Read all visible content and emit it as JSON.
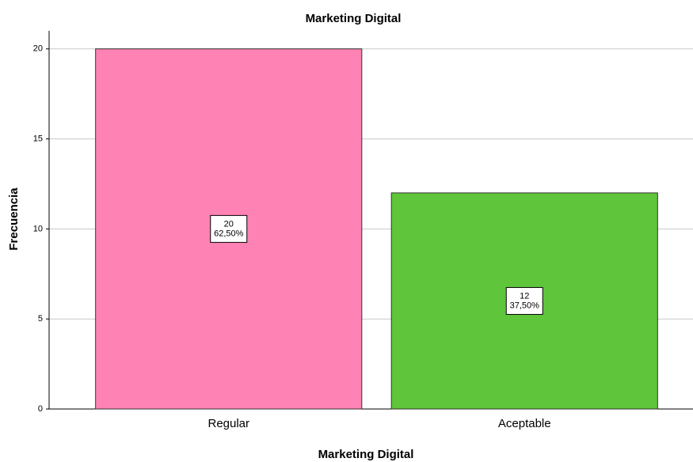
{
  "chart_data": {
    "type": "bar",
    "title": "Marketing Digital",
    "x_label": "Marketing Digital",
    "y_label": "Frecuencia",
    "categories": [
      "Regular",
      "Aceptable"
    ],
    "values": [
      20,
      12
    ],
    "percent_values": [
      62.5,
      37.5
    ],
    "percent_labels": [
      "62,50%",
      "37,50%"
    ],
    "colors": [
      "#ff82b4",
      "#5fc53a"
    ],
    "ylim": [
      0,
      21
    ],
    "yticks": [
      0,
      5,
      10,
      15,
      20
    ],
    "grid": true
  }
}
